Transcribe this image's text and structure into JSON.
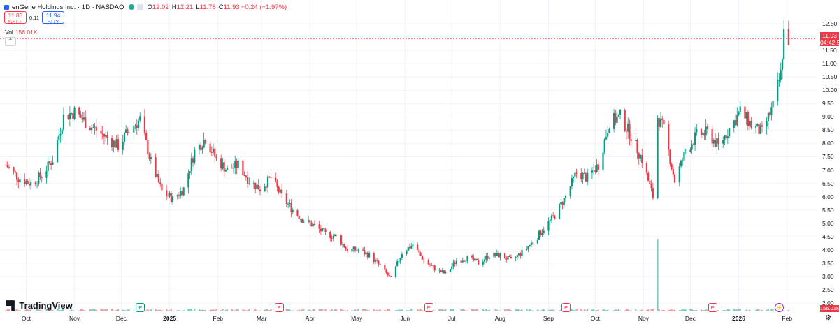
{
  "header": {
    "symbol_text": "enGene Holdings Inc. · 1D · NASDAQ",
    "open_label": "O",
    "open_value": "12.02",
    "high_label": "H",
    "high_value": "12.21",
    "low_label": "L",
    "low_value": "11.78",
    "close_label": "C",
    "close_value": "11.93",
    "change_value": "−0.24 (−1.97%)"
  },
  "trade": {
    "sell_price": "11.83",
    "sell_label": "SELL",
    "spread": "0.11",
    "buy_price": "11.94",
    "buy_label": "BUY"
  },
  "volume": {
    "label": "Vol",
    "value": "156.01K"
  },
  "price_label": {
    "price": "11.93",
    "countdown": "04:42:5"
  },
  "volume_label": "156.01K",
  "branding": "TradingView",
  "colors": {
    "up": "#089981",
    "down": "#f23645",
    "grid": "#f0f3fa",
    "text": "#131722",
    "accent": "#2962ff"
  },
  "events": [
    {
      "type": "dividend",
      "date": "2024-12-13",
      "label": "E"
    },
    {
      "type": "earnings",
      "date": "2025-03-12",
      "label": "E"
    },
    {
      "type": "earnings",
      "date": "2025-06-16",
      "label": "E"
    },
    {
      "type": "earnings",
      "date": "2025-09-12",
      "label": "E"
    },
    {
      "type": "earnings",
      "date": "2025-12-15",
      "label": "E"
    },
    {
      "type": "split",
      "date": "2026-01-27",
      "label": "⚡"
    }
  ],
  "chart_data": {
    "type": "candlestick",
    "title": "",
    "xlabel": "",
    "ylabel": "",
    "y_axis_position": "right",
    "ylim": [
      2.0,
      12.5
    ],
    "y_ticks": [
      "12.50",
      "12.00",
      "11.50",
      "11.00",
      "10.50",
      "10.00",
      "9.50",
      "9.00",
      "8.50",
      "8.00",
      "7.50",
      "7.00",
      "6.50",
      "6.00",
      "5.50",
      "5.00",
      "4.50",
      "4.00",
      "3.50",
      "3.00",
      "2.50",
      "2.00"
    ],
    "x_ticks": [
      {
        "label": "Oct",
        "date": "2024-10-01",
        "bold": false
      },
      {
        "label": "Nov",
        "date": "2024-11-01",
        "bold": false
      },
      {
        "label": "Dec",
        "date": "2024-12-01",
        "bold": false
      },
      {
        "label": "2025",
        "date": "2025-01-01",
        "bold": true
      },
      {
        "label": "Feb",
        "date": "2025-02-01",
        "bold": false
      },
      {
        "label": "Mar",
        "date": "2025-03-01",
        "bold": false
      },
      {
        "label": "Apr",
        "date": "2025-04-01",
        "bold": false
      },
      {
        "label": "May",
        "date": "2025-05-01",
        "bold": false
      },
      {
        "label": "Jun",
        "date": "2025-06-01",
        "bold": false
      },
      {
        "label": "Jul",
        "date": "2025-07-01",
        "bold": false
      },
      {
        "label": "Aug",
        "date": "2025-08-01",
        "bold": false
      },
      {
        "label": "Sep",
        "date": "2025-09-01",
        "bold": false
      },
      {
        "label": "Oct",
        "date": "2025-10-01",
        "bold": false
      },
      {
        "label": "Nov",
        "date": "2025-11-01",
        "bold": false
      },
      {
        "label": "Dec",
        "date": "2025-12-01",
        "bold": false
      },
      {
        "label": "2026",
        "date": "2026-01-01",
        "bold": true
      },
      {
        "label": "Feb",
        "date": "2026-02-01",
        "bold": false
      }
    ],
    "grid": true,
    "last_price": 11.93,
    "key_closes": [
      {
        "date": "2024-09-18",
        "close": 7.2
      },
      {
        "date": "2024-09-26",
        "close": 6.7
      },
      {
        "date": "2024-10-04",
        "close": 6.5
      },
      {
        "date": "2024-10-11",
        "close": 6.8
      },
      {
        "date": "2024-10-18",
        "close": 7.4
      },
      {
        "date": "2024-10-25",
        "close": 9.0
      },
      {
        "date": "2024-11-01",
        "close": 9.2
      },
      {
        "date": "2024-11-08",
        "close": 8.8
      },
      {
        "date": "2024-11-15",
        "close": 8.5
      },
      {
        "date": "2024-11-22",
        "close": 8.2
      },
      {
        "date": "2024-11-29",
        "close": 7.9
      },
      {
        "date": "2024-12-06",
        "close": 8.5
      },
      {
        "date": "2024-12-13",
        "close": 8.9
      },
      {
        "date": "2024-12-20",
        "close": 7.3
      },
      {
        "date": "2024-12-27",
        "close": 6.2
      },
      {
        "date": "2025-01-03",
        "close": 5.9
      },
      {
        "date": "2025-01-10",
        "close": 6.3
      },
      {
        "date": "2025-01-17",
        "close": 7.7
      },
      {
        "date": "2025-01-24",
        "close": 8.2
      },
      {
        "date": "2025-01-31",
        "close": 7.4
      },
      {
        "date": "2025-02-07",
        "close": 7.0
      },
      {
        "date": "2025-02-14",
        "close": 7.2
      },
      {
        "date": "2025-02-21",
        "close": 6.6
      },
      {
        "date": "2025-02-28",
        "close": 6.3
      },
      {
        "date": "2025-03-07",
        "close": 6.7
      },
      {
        "date": "2025-03-14",
        "close": 6.0
      },
      {
        "date": "2025-03-21",
        "close": 5.5
      },
      {
        "date": "2025-03-28",
        "close": 5.1
      },
      {
        "date": "2025-04-04",
        "close": 4.9
      },
      {
        "date": "2025-04-11",
        "close": 4.6
      },
      {
        "date": "2025-04-18",
        "close": 4.5
      },
      {
        "date": "2025-04-25",
        "close": 4.0
      },
      {
        "date": "2025-05-02",
        "close": 4.0
      },
      {
        "date": "2025-05-09",
        "close": 3.8
      },
      {
        "date": "2025-05-16",
        "close": 3.4
      },
      {
        "date": "2025-05-23",
        "close": 2.9
      },
      {
        "date": "2025-05-30",
        "close": 3.9
      },
      {
        "date": "2025-06-06",
        "close": 4.2
      },
      {
        "date": "2025-06-13",
        "close": 3.6
      },
      {
        "date": "2025-06-20",
        "close": 3.3
      },
      {
        "date": "2025-06-27",
        "close": 3.1
      },
      {
        "date": "2025-07-04",
        "close": 3.6
      },
      {
        "date": "2025-07-11",
        "close": 3.7
      },
      {
        "date": "2025-07-18",
        "close": 3.5
      },
      {
        "date": "2025-07-25",
        "close": 3.8
      },
      {
        "date": "2025-08-01",
        "close": 3.8
      },
      {
        "date": "2025-08-08",
        "close": 3.6
      },
      {
        "date": "2025-08-15",
        "close": 3.9
      },
      {
        "date": "2025-08-22",
        "close": 4.3
      },
      {
        "date": "2025-08-29",
        "close": 4.8
      },
      {
        "date": "2025-09-05",
        "close": 5.3
      },
      {
        "date": "2025-09-12",
        "close": 6.0
      },
      {
        "date": "2025-09-19",
        "close": 6.9
      },
      {
        "date": "2025-09-26",
        "close": 6.7
      },
      {
        "date": "2025-10-03",
        "close": 7.2
      },
      {
        "date": "2025-10-10",
        "close": 8.8
      },
      {
        "date": "2025-10-17",
        "close": 9.0
      },
      {
        "date": "2025-10-24",
        "close": 8.3
      },
      {
        "date": "2025-10-31",
        "close": 7.4
      },
      {
        "date": "2025-11-07",
        "close": 6.0
      },
      {
        "date": "2025-11-10",
        "close": 9.0
      },
      {
        "date": "2025-11-14",
        "close": 8.5
      },
      {
        "date": "2025-11-21",
        "close": 6.6
      },
      {
        "date": "2025-11-28",
        "close": 7.7
      },
      {
        "date": "2025-12-05",
        "close": 8.3
      },
      {
        "date": "2025-12-12",
        "close": 8.4
      },
      {
        "date": "2025-12-19",
        "close": 7.9
      },
      {
        "date": "2026-01-02",
        "close": 9.2
      },
      {
        "date": "2026-01-09",
        "close": 8.7
      },
      {
        "date": "2026-01-16",
        "close": 8.4
      },
      {
        "date": "2026-01-23",
        "close": 9.4
      },
      {
        "date": "2026-01-28",
        "close": 10.6
      },
      {
        "date": "2026-01-30",
        "close": 12.17
      },
      {
        "date": "2026-02-02",
        "close": 11.93
      }
    ]
  }
}
